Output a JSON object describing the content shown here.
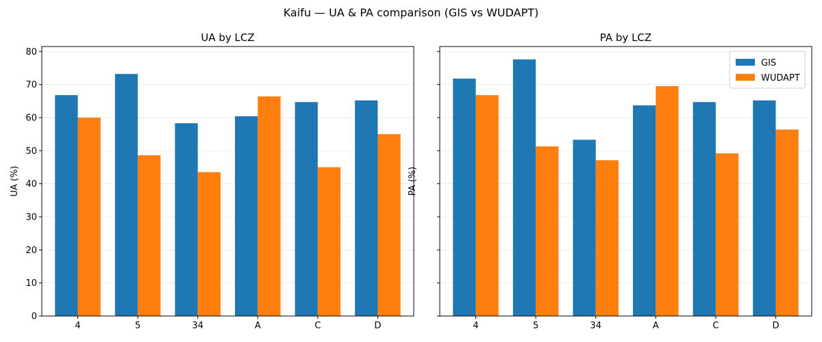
{
  "chart_data": {
    "title": "Kaifu — UA & PA comparison (GIS vs WUDAPT)",
    "type": "bar",
    "categories": [
      "4",
      "5",
      "34",
      "A",
      "C",
      "D"
    ],
    "ylim": [
      0,
      81.5
    ],
    "yticks": [
      0,
      10,
      20,
      30,
      40,
      50,
      60,
      70,
      80
    ],
    "grid": "y",
    "shared_y": true,
    "colors": {
      "GIS": "#1f77b4",
      "WUDAPT": "#ff7f0e"
    },
    "legend": {
      "placement": "top-right",
      "panel": 1
    },
    "subplots": [
      {
        "title": "UA by LCZ",
        "xlabel": "",
        "ylabel": "UA (%)",
        "series": [
          {
            "name": "GIS",
            "values": [
              66.8,
              73.2,
              58.3,
              60.4,
              64.7,
              65.2
            ]
          },
          {
            "name": "WUDAPT",
            "values": [
              60.0,
              48.6,
              43.5,
              66.4,
              45.0,
              55.0
            ]
          }
        ]
      },
      {
        "title": "PA by LCZ",
        "xlabel": "",
        "ylabel": "PA (%)",
        "series": [
          {
            "name": "GIS",
            "values": [
              71.8,
              77.6,
              53.3,
              63.7,
              64.7,
              65.2
            ]
          },
          {
            "name": "WUDAPT",
            "values": [
              66.8,
              51.3,
              47.1,
              69.5,
              49.2,
              56.4
            ]
          }
        ]
      }
    ]
  }
}
